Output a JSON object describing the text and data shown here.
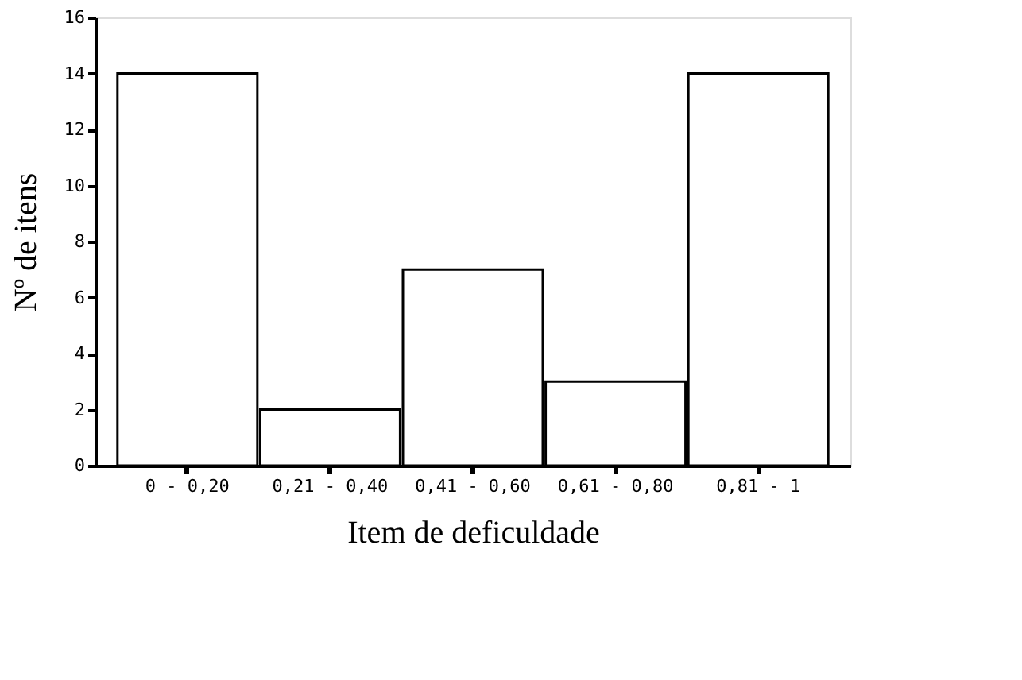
{
  "chart_data": {
    "type": "bar",
    "xlabel": "Item de deficuldade",
    "ylabel": "Nº de itens",
    "categories": [
      "0 - 0,20",
      "0,21 - 0,40",
      "0,41 - 0,60",
      "0,61 - 0,80",
      "0,81 - 1"
    ],
    "values": [
      14,
      2,
      7,
      3,
      14
    ],
    "color": "#ffffff",
    "ylim": [
      0,
      16
    ],
    "yticks": [
      0,
      2,
      4,
      6,
      8,
      10,
      12,
      14,
      16
    ],
    "grid": false
  }
}
